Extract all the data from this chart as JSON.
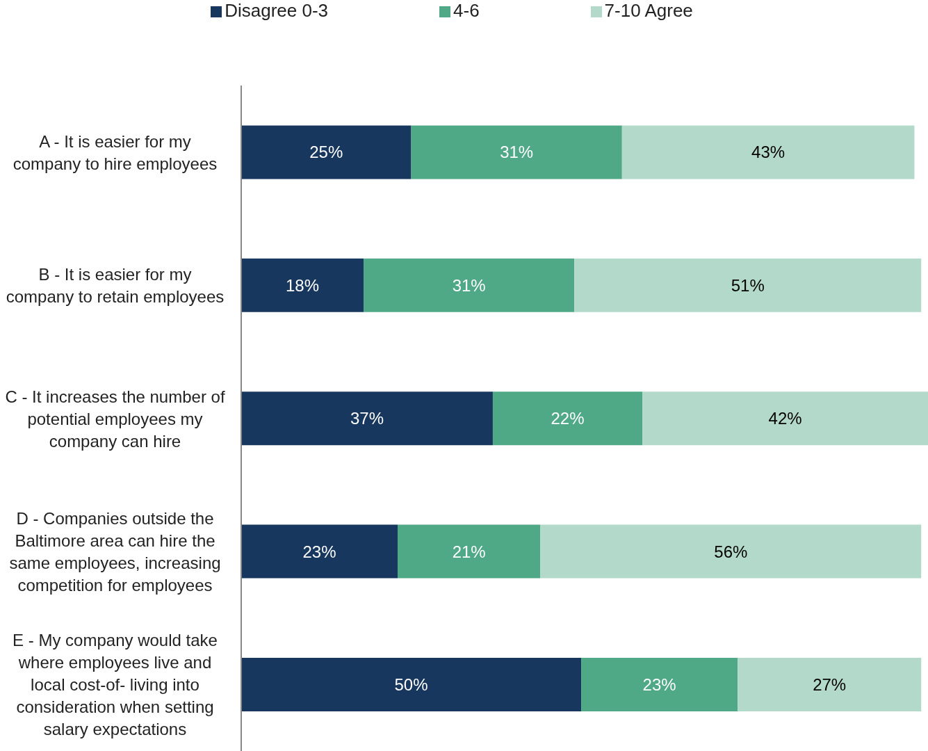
{
  "chart_data": {
    "type": "bar",
    "orientation": "horizontal",
    "stacked": true,
    "legend": "top",
    "tick_labels": "y",
    "xlim": [
      0,
      101
    ],
    "categories": [
      "A - It is easier for my company to hire employees",
      "B - It is easier for my company to retain employees",
      "C - It increases the number of potential employees my company can hire",
      "D - Companies outside the Baltimore area can hire the same employees, increasing competition for employees",
      "E - My company would take where employees live and local cost-of- living into consideration when setting salary expectations"
    ],
    "series": [
      {
        "name": "Disagree 0-3",
        "color": "#17375e",
        "values": [
          25,
          18,
          37,
          23,
          50
        ],
        "value_labels": [
          "25%",
          "18%",
          "37%",
          "23%",
          "50%"
        ]
      },
      {
        "name": "4-6",
        "color": "#4fa886",
        "values": [
          31,
          31,
          22,
          21,
          23
        ],
        "value_labels": [
          "31%",
          "31%",
          "22%",
          "21%",
          "23%"
        ]
      },
      {
        "name": "7-10 Agree",
        "color": "#b2d9c9",
        "values": [
          43,
          51,
          42,
          56,
          27
        ],
        "value_labels": [
          "43%",
          "51%",
          "42%",
          "56%",
          "27%"
        ]
      }
    ]
  }
}
